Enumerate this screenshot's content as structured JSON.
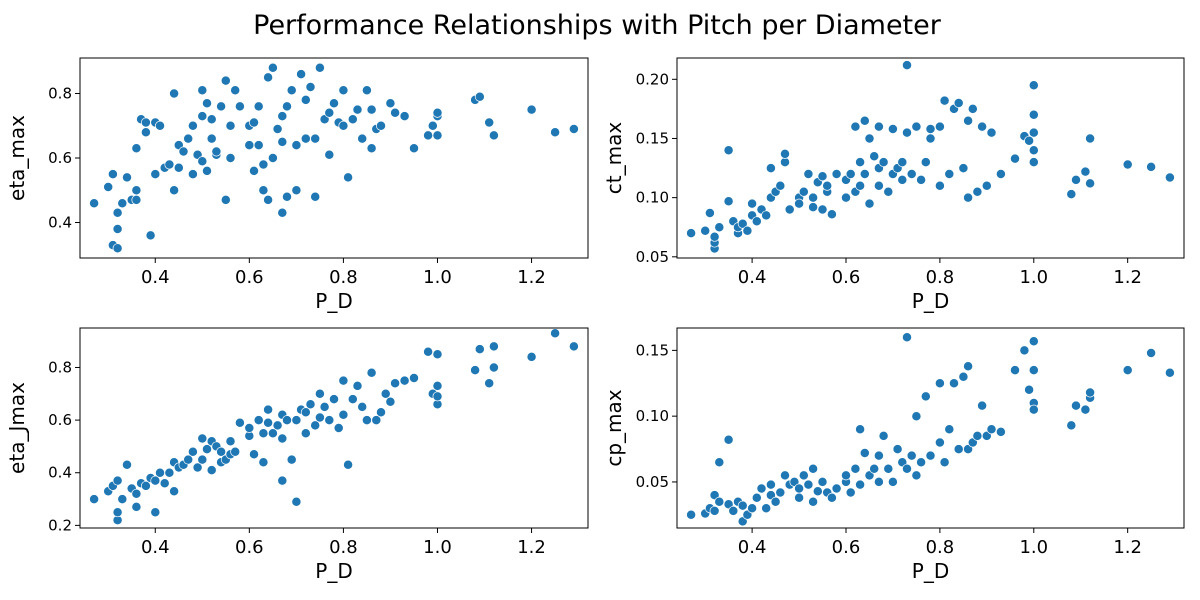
{
  "figure": {
    "title": "Performance Relationships with Pitch per Diameter"
  },
  "colors": {
    "points": "#1f77b4",
    "point_edge": "#ffffff"
  },
  "chart_data": [
    {
      "type": "scatter",
      "xlabel": "P_D",
      "ylabel": "eta_max",
      "xlim": [
        0.24,
        1.32
      ],
      "ylim": [
        0.29,
        0.91
      ],
      "xticks": [
        0.4,
        0.6,
        0.8,
        1.0,
        1.2
      ],
      "yticks": [
        0.4,
        0.6,
        0.8
      ],
      "x": [
        0.27,
        0.3,
        0.31,
        0.31,
        0.32,
        0.32,
        0.32,
        0.33,
        0.34,
        0.35,
        0.36,
        0.36,
        0.36,
        0.37,
        0.38,
        0.38,
        0.39,
        0.4,
        0.4,
        0.41,
        0.42,
        0.43,
        0.44,
        0.44,
        0.45,
        0.45,
        0.46,
        0.47,
        0.48,
        0.48,
        0.49,
        0.5,
        0.5,
        0.5,
        0.51,
        0.51,
        0.52,
        0.52,
        0.53,
        0.53,
        0.54,
        0.55,
        0.55,
        0.56,
        0.56,
        0.57,
        0.58,
        0.6,
        0.6,
        0.61,
        0.61,
        0.62,
        0.62,
        0.63,
        0.63,
        0.64,
        0.64,
        0.65,
        0.65,
        0.66,
        0.67,
        0.67,
        0.67,
        0.68,
        0.68,
        0.69,
        0.7,
        0.7,
        0.71,
        0.72,
        0.72,
        0.73,
        0.74,
        0.74,
        0.75,
        0.76,
        0.77,
        0.77,
        0.78,
        0.79,
        0.8,
        0.8,
        0.81,
        0.82,
        0.83,
        0.84,
        0.85,
        0.86,
        0.86,
        0.87,
        0.88,
        0.9,
        0.91,
        0.93,
        0.95,
        0.98,
        0.99,
        1.0,
        1.0,
        1.0,
        1.08,
        1.09,
        1.11,
        1.12,
        1.2,
        1.25,
        1.29
      ],
      "y": [
        0.46,
        0.51,
        0.55,
        0.33,
        0.38,
        0.43,
        0.32,
        0.46,
        0.54,
        0.47,
        0.5,
        0.47,
        0.63,
        0.72,
        0.71,
        0.68,
        0.36,
        0.71,
        0.55,
        0.7,
        0.57,
        0.58,
        0.8,
        0.5,
        0.64,
        0.57,
        0.62,
        0.66,
        0.55,
        0.7,
        0.61,
        0.81,
        0.59,
        0.73,
        0.56,
        0.77,
        0.72,
        0.66,
        0.61,
        0.62,
        0.76,
        0.84,
        0.47,
        0.7,
        0.6,
        0.81,
        0.76,
        0.64,
        0.7,
        0.71,
        0.56,
        0.76,
        0.64,
        0.58,
        0.5,
        0.85,
        0.47,
        0.88,
        0.6,
        0.69,
        0.43,
        0.65,
        0.73,
        0.76,
        0.48,
        0.81,
        0.5,
        0.64,
        0.86,
        0.78,
        0.66,
        0.82,
        0.48,
        0.66,
        0.88,
        0.72,
        0.74,
        0.61,
        0.77,
        0.71,
        0.7,
        0.81,
        0.54,
        0.72,
        0.75,
        0.66,
        0.81,
        0.63,
        0.75,
        0.69,
        0.7,
        0.77,
        0.74,
        0.73,
        0.63,
        0.67,
        0.7,
        0.73,
        0.74,
        0.67,
        0.78,
        0.79,
        0.71,
        0.67,
        0.75,
        0.68,
        0.69
      ]
    },
    {
      "type": "scatter",
      "xlabel": "P_D",
      "ylabel": "ct_max",
      "xlim": [
        0.24,
        1.32
      ],
      "ylim": [
        0.049,
        0.218
      ],
      "xticks": [
        0.4,
        0.6,
        0.8,
        1.0,
        1.2
      ],
      "yticks": [
        0.05,
        0.1,
        0.15,
        0.2
      ],
      "x": [
        0.27,
        0.3,
        0.31,
        0.32,
        0.32,
        0.32,
        0.33,
        0.35,
        0.35,
        0.36,
        0.37,
        0.37,
        0.38,
        0.39,
        0.4,
        0.4,
        0.41,
        0.42,
        0.43,
        0.44,
        0.44,
        0.45,
        0.46,
        0.47,
        0.47,
        0.48,
        0.5,
        0.5,
        0.51,
        0.52,
        0.53,
        0.53,
        0.54,
        0.55,
        0.55,
        0.56,
        0.56,
        0.57,
        0.58,
        0.6,
        0.6,
        0.61,
        0.62,
        0.62,
        0.63,
        0.63,
        0.64,
        0.64,
        0.65,
        0.65,
        0.66,
        0.67,
        0.67,
        0.67,
        0.68,
        0.69,
        0.7,
        0.7,
        0.71,
        0.72,
        0.72,
        0.73,
        0.73,
        0.74,
        0.75,
        0.76,
        0.77,
        0.78,
        0.78,
        0.8,
        0.8,
        0.81,
        0.82,
        0.83,
        0.84,
        0.85,
        0.86,
        0.86,
        0.87,
        0.88,
        0.89,
        0.9,
        0.91,
        0.93,
        0.96,
        0.98,
        0.99,
        1.0,
        1.0,
        1.0,
        1.0,
        1.0,
        1.08,
        1.09,
        1.11,
        1.12,
        1.12,
        1.2,
        1.25,
        1.29
      ],
      "y": [
        0.07,
        0.072,
        0.087,
        0.057,
        0.062,
        0.067,
        0.075,
        0.097,
        0.14,
        0.08,
        0.07,
        0.075,
        0.078,
        0.072,
        0.085,
        0.095,
        0.08,
        0.09,
        0.085,
        0.125,
        0.1,
        0.105,
        0.11,
        0.13,
        0.137,
        0.09,
        0.1,
        0.095,
        0.105,
        0.12,
        0.1,
        0.092,
        0.113,
        0.118,
        0.09,
        0.105,
        0.11,
        0.086,
        0.12,
        0.1,
        0.115,
        0.12,
        0.105,
        0.16,
        0.13,
        0.11,
        0.165,
        0.12,
        0.15,
        0.095,
        0.135,
        0.11,
        0.125,
        0.16,
        0.13,
        0.105,
        0.12,
        0.158,
        0.125,
        0.115,
        0.13,
        0.212,
        0.155,
        0.12,
        0.16,
        0.115,
        0.13,
        0.15,
        0.158,
        0.11,
        0.16,
        0.182,
        0.12,
        0.175,
        0.18,
        0.125,
        0.165,
        0.1,
        0.175,
        0.105,
        0.16,
        0.11,
        0.155,
        0.12,
        0.133,
        0.152,
        0.148,
        0.195,
        0.17,
        0.155,
        0.14,
        0.13,
        0.103,
        0.115,
        0.122,
        0.15,
        0.112,
        0.128,
        0.126,
        0.117
      ]
    },
    {
      "type": "scatter",
      "xlabel": "P_D",
      "ylabel": "eta_Jmax",
      "xlim": [
        0.24,
        1.32
      ],
      "ylim": [
        0.19,
        0.95
      ],
      "xticks": [
        0.4,
        0.6,
        0.8,
        1.0,
        1.2
      ],
      "yticks": [
        0.2,
        0.4,
        0.6,
        0.8
      ],
      "x": [
        0.27,
        0.3,
        0.31,
        0.32,
        0.32,
        0.32,
        0.33,
        0.34,
        0.35,
        0.36,
        0.36,
        0.37,
        0.38,
        0.39,
        0.4,
        0.4,
        0.41,
        0.42,
        0.43,
        0.44,
        0.44,
        0.45,
        0.46,
        0.47,
        0.48,
        0.49,
        0.5,
        0.5,
        0.51,
        0.52,
        0.52,
        0.53,
        0.54,
        0.54,
        0.55,
        0.56,
        0.56,
        0.57,
        0.58,
        0.6,
        0.6,
        0.61,
        0.62,
        0.63,
        0.63,
        0.64,
        0.64,
        0.65,
        0.66,
        0.67,
        0.67,
        0.67,
        0.68,
        0.69,
        0.7,
        0.7,
        0.71,
        0.72,
        0.72,
        0.73,
        0.74,
        0.75,
        0.75,
        0.76,
        0.77,
        0.78,
        0.79,
        0.8,
        0.8,
        0.81,
        0.82,
        0.83,
        0.84,
        0.85,
        0.86,
        0.87,
        0.88,
        0.89,
        0.9,
        0.91,
        0.93,
        0.95,
        0.98,
        0.99,
        1.0,
        1.0,
        1.0,
        1.0,
        1.08,
        1.09,
        1.11,
        1.12,
        1.12,
        1.2,
        1.25,
        1.29
      ],
      "y": [
        0.3,
        0.33,
        0.35,
        0.22,
        0.25,
        0.37,
        0.3,
        0.43,
        0.34,
        0.32,
        0.27,
        0.36,
        0.35,
        0.38,
        0.25,
        0.37,
        0.4,
        0.36,
        0.4,
        0.44,
        0.33,
        0.42,
        0.43,
        0.45,
        0.48,
        0.42,
        0.53,
        0.45,
        0.49,
        0.41,
        0.52,
        0.5,
        0.48,
        0.44,
        0.45,
        0.47,
        0.52,
        0.48,
        0.59,
        0.54,
        0.57,
        0.47,
        0.6,
        0.44,
        0.55,
        0.64,
        0.59,
        0.55,
        0.58,
        0.62,
        0.53,
        0.37,
        0.6,
        0.45,
        0.29,
        0.6,
        0.64,
        0.55,
        0.63,
        0.66,
        0.58,
        0.7,
        0.61,
        0.65,
        0.6,
        0.68,
        0.57,
        0.75,
        0.62,
        0.43,
        0.68,
        0.73,
        0.65,
        0.6,
        0.78,
        0.6,
        0.63,
        0.7,
        0.67,
        0.74,
        0.75,
        0.76,
        0.86,
        0.7,
        0.85,
        0.73,
        0.66,
        0.69,
        0.79,
        0.87,
        0.74,
        0.8,
        0.88,
        0.84,
        0.93,
        0.88
      ]
    },
    {
      "type": "scatter",
      "xlabel": "P_D",
      "ylabel": "cp_max",
      "xlim": [
        0.24,
        1.32
      ],
      "ylim": [
        0.015,
        0.167
      ],
      "xticks": [
        0.4,
        0.6,
        0.8,
        1.0,
        1.2
      ],
      "yticks": [
        0.05,
        0.1,
        0.15
      ],
      "x": [
        0.27,
        0.3,
        0.31,
        0.32,
        0.32,
        0.33,
        0.33,
        0.35,
        0.35,
        0.36,
        0.37,
        0.38,
        0.38,
        0.39,
        0.4,
        0.41,
        0.42,
        0.43,
        0.44,
        0.44,
        0.45,
        0.46,
        0.47,
        0.48,
        0.49,
        0.5,
        0.5,
        0.51,
        0.52,
        0.53,
        0.53,
        0.54,
        0.55,
        0.56,
        0.57,
        0.58,
        0.6,
        0.6,
        0.61,
        0.62,
        0.63,
        0.63,
        0.64,
        0.65,
        0.66,
        0.67,
        0.67,
        0.68,
        0.69,
        0.7,
        0.71,
        0.72,
        0.73,
        0.73,
        0.74,
        0.75,
        0.75,
        0.76,
        0.77,
        0.78,
        0.8,
        0.8,
        0.81,
        0.82,
        0.83,
        0.84,
        0.85,
        0.86,
        0.86,
        0.87,
        0.88,
        0.89,
        0.9,
        0.91,
        0.93,
        0.96,
        0.98,
        0.99,
        1.0,
        1.0,
        1.0,
        1.0,
        1.08,
        1.09,
        1.11,
        1.12,
        1.12,
        1.2,
        1.25,
        1.29
      ],
      "y": [
        0.025,
        0.026,
        0.03,
        0.028,
        0.04,
        0.035,
        0.065,
        0.082,
        0.033,
        0.028,
        0.035,
        0.02,
        0.032,
        0.025,
        0.03,
        0.038,
        0.045,
        0.03,
        0.048,
        0.04,
        0.035,
        0.042,
        0.055,
        0.048,
        0.05,
        0.038,
        0.045,
        0.055,
        0.048,
        0.06,
        0.035,
        0.043,
        0.05,
        0.042,
        0.038,
        0.045,
        0.05,
        0.055,
        0.042,
        0.06,
        0.09,
        0.048,
        0.072,
        0.055,
        0.06,
        0.07,
        0.05,
        0.085,
        0.06,
        0.05,
        0.075,
        0.065,
        0.16,
        0.06,
        0.07,
        0.1,
        0.055,
        0.065,
        0.115,
        0.07,
        0.08,
        0.125,
        0.065,
        0.09,
        0.125,
        0.075,
        0.13,
        0.075,
        0.138,
        0.08,
        0.085,
        0.108,
        0.085,
        0.09,
        0.088,
        0.135,
        0.15,
        0.12,
        0.157,
        0.135,
        0.11,
        0.105,
        0.093,
        0.108,
        0.105,
        0.114,
        0.118,
        0.135,
        0.148,
        0.133
      ]
    }
  ]
}
